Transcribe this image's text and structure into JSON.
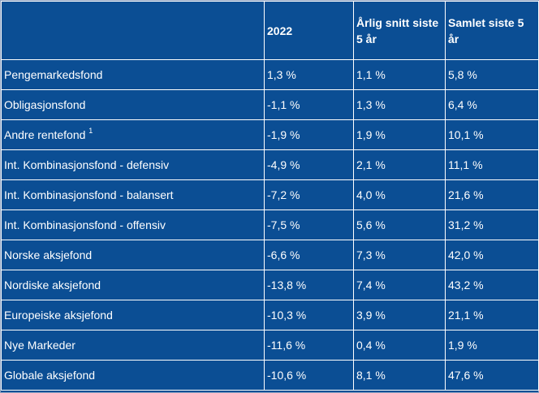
{
  "table": {
    "headers": [
      "",
      "2022",
      "Årlig snitt siste 5 år",
      "Samlet siste 5 år"
    ],
    "rows": [
      {
        "name": "Pengemarkedsfond",
        "footnote": "",
        "y2022": "1,3 %",
        "annual5": "1,1 %",
        "total5": "5,8 %"
      },
      {
        "name": "Obligasjonsfond",
        "footnote": "",
        "y2022": "-1,1 %",
        "annual5": "1,3 %",
        "total5": "6,4 %"
      },
      {
        "name": "Andre rentefond",
        "footnote": "1",
        "y2022": "-1,9 %",
        "annual5": "1,9 %",
        "total5": "10,1 %"
      },
      {
        "name": "Int. Kombinasjonsfond - defensiv",
        "footnote": "",
        "y2022": "-4,9 %",
        "annual5": "2,1 %",
        "total5": "11,1 %"
      },
      {
        "name": "Int. Kombinasjonsfond - balansert",
        "footnote": "",
        "y2022": "-7,2 %",
        "annual5": "4,0 %",
        "total5": "21,6 %"
      },
      {
        "name": "Int. Kombinasjonsfond - offensiv",
        "footnote": "",
        "y2022": "-7,5 %",
        "annual5": "5,6 %",
        "total5": "31,2 %"
      },
      {
        "name": "Norske aksjefond",
        "footnote": "",
        "y2022": "-6,6 %",
        "annual5": "7,3 %",
        "total5": "42,0 %"
      },
      {
        "name": "Nordiske aksjefond",
        "footnote": "",
        "y2022": "-13,8 %",
        "annual5": "7,4 %",
        "total5": "43,2 %"
      },
      {
        "name": "Europeiske aksjefond",
        "footnote": "",
        "y2022": "-10,3 %",
        "annual5": "3,9 %",
        "total5": "21,1 %"
      },
      {
        "name": "Nye Markeder",
        "footnote": "",
        "y2022": "-11,6 %",
        "annual5": "0,4 %",
        "total5": "1,9 %"
      },
      {
        "name": "Globale aksjefond",
        "footnote": "",
        "y2022": "-10,6 %",
        "annual5": "8,1 %",
        "total5": "47,6 %"
      }
    ]
  },
  "colors": {
    "background": "#0b4e94",
    "text": "#ffffff",
    "grid": "#ffffff"
  }
}
